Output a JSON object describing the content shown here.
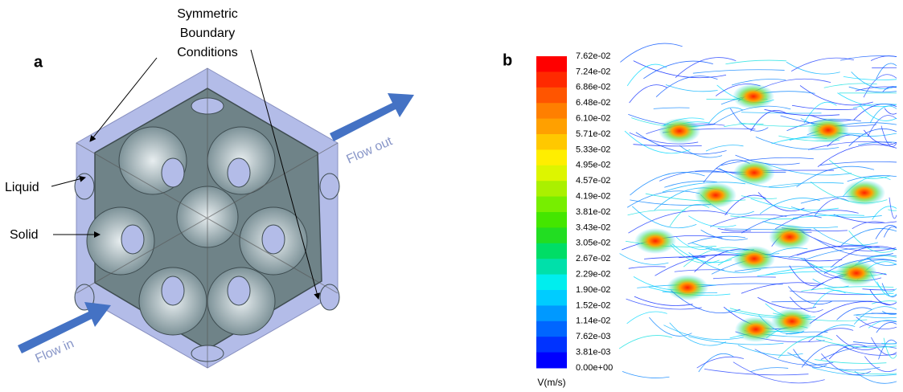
{
  "panels": {
    "a": {
      "label": "a",
      "boundary_label": [
        "Symmetric",
        "Boundary",
        "Conditions"
      ],
      "liquid_label": "Liquid",
      "solid_label": "Solid",
      "flow_in": "Flow in",
      "flow_out": "Flow out"
    },
    "b": {
      "label": "b",
      "colorbar": {
        "labels": [
          "7.62e-02",
          "7.24e-02",
          "6.86e-02",
          "6.48e-02",
          "6.10e-02",
          "5.71e-02",
          "5.33e-02",
          "4.95e-02",
          "4.57e-02",
          "4.19e-02",
          "3.81e-02",
          "3.43e-02",
          "3.05e-02",
          "2.67e-02",
          "2.29e-02",
          "1.90e-02",
          "1.52e-02",
          "1.14e-02",
          "7.62e-03",
          "3.81e-03",
          "0.00e+00"
        ],
        "colors": [
          "#ff0000",
          "#ff2a00",
          "#ff5500",
          "#ff7f00",
          "#ffa000",
          "#ffc800",
          "#ffee00",
          "#ddf500",
          "#aaf000",
          "#77ee00",
          "#44e600",
          "#22dd22",
          "#00dd66",
          "#00e0aa",
          "#00eeee",
          "#00ccff",
          "#0099ff",
          "#0066ff",
          "#0033ff",
          "#0000ff"
        ],
        "unit": "V(m/s)"
      }
    }
  }
}
